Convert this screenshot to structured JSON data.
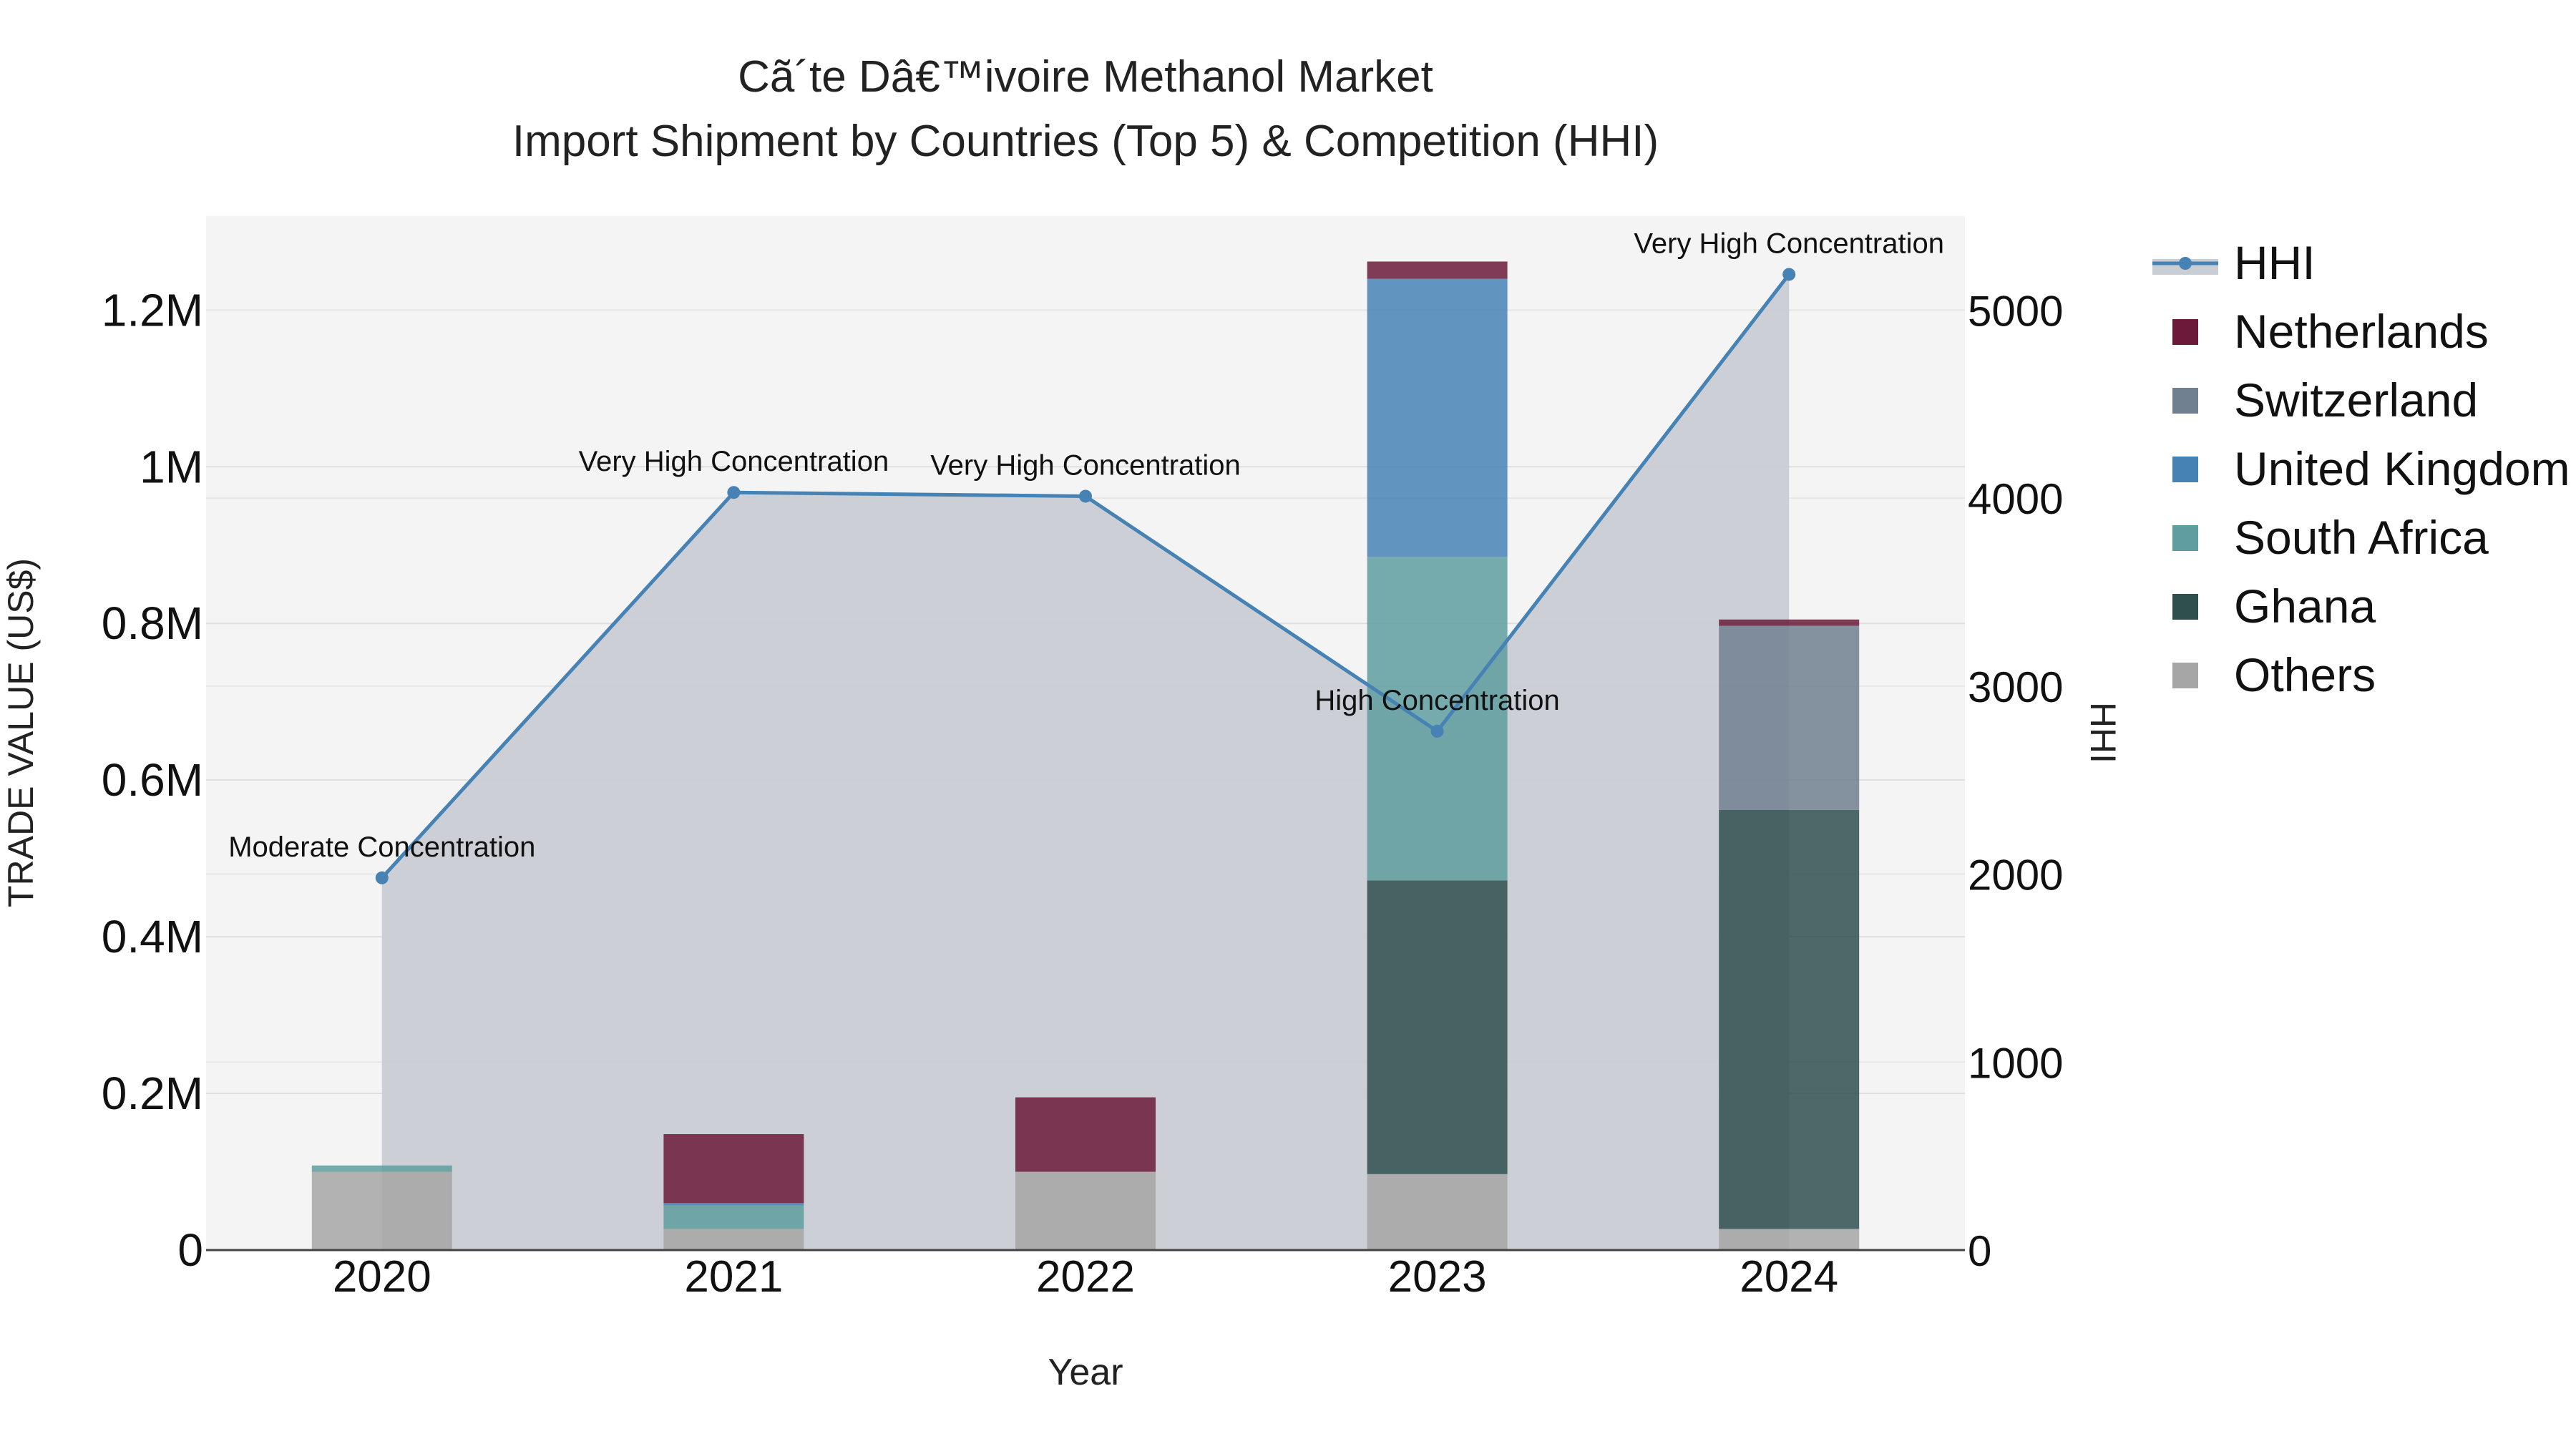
{
  "chart_data": {
    "type": "bar",
    "title_line1": "Cã´te Dâ€™ivoire Methanol Market",
    "title_line2": "Import Shipment by Countries (Top 5) & Competition (HHI)",
    "xlabel": "Year",
    "ylabel": "TRADE VALUE (US$)",
    "y2label": "HHI",
    "categories": [
      "2020",
      "2021",
      "2022",
      "2023",
      "2024"
    ],
    "ylim": [
      0,
      1320000
    ],
    "y2lim": [
      0,
      5500
    ],
    "yticks": [
      {
        "value": 0,
        "label": "0"
      },
      {
        "value": 200000,
        "label": "0.2M"
      },
      {
        "value": 400000,
        "label": "0.4M"
      },
      {
        "value": 600000,
        "label": "0.6M"
      },
      {
        "value": 800000,
        "label": "0.8M"
      },
      {
        "value": 1000000,
        "label": "1M"
      },
      {
        "value": 1200000,
        "label": "1.2M"
      }
    ],
    "y2ticks": [
      {
        "value": 0,
        "label": "0"
      },
      {
        "value": 1000,
        "label": "1000"
      },
      {
        "value": 2000,
        "label": "2000"
      },
      {
        "value": 3000,
        "label": "3000"
      },
      {
        "value": 4000,
        "label": "4000"
      },
      {
        "value": 5000,
        "label": "5000"
      }
    ],
    "series": [
      {
        "name": "Others",
        "color": "#a6a6a6",
        "values": [
          100000,
          27000,
          100000,
          97000,
          27000
        ]
      },
      {
        "name": "Ghana",
        "color": "#2f4f4f",
        "values": [
          0,
          0,
          0,
          375000,
          535000
        ]
      },
      {
        "name": "South Africa",
        "color": "#5f9ea0",
        "values": [
          8000,
          30000,
          0,
          413000,
          0
        ]
      },
      {
        "name": "United Kingdom",
        "color": "#4682b4",
        "values": [
          0,
          3000,
          0,
          355000,
          0
        ]
      },
      {
        "name": "Switzerland",
        "color": "#708090",
        "values": [
          0,
          0,
          0,
          0,
          235000
        ]
      },
      {
        "name": "Netherlands",
        "color": "#6b1a3a",
        "values": [
          0,
          88000,
          95000,
          22000,
          8000
        ]
      }
    ],
    "hhi": {
      "name": "HHI",
      "color": "#4682b4",
      "fill": "#c9cdd4",
      "values": [
        1980,
        4030,
        4010,
        2760,
        5190
      ],
      "annotations": [
        "Moderate Concentration",
        "Very High Concentration",
        "Very High Concentration",
        "High Concentration",
        "Very High Concentration"
      ]
    },
    "legend": [
      "HHI",
      "Netherlands",
      "Switzerland",
      "United Kingdom",
      "South Africa",
      "Ghana",
      "Others"
    ],
    "legend_position": "right"
  }
}
